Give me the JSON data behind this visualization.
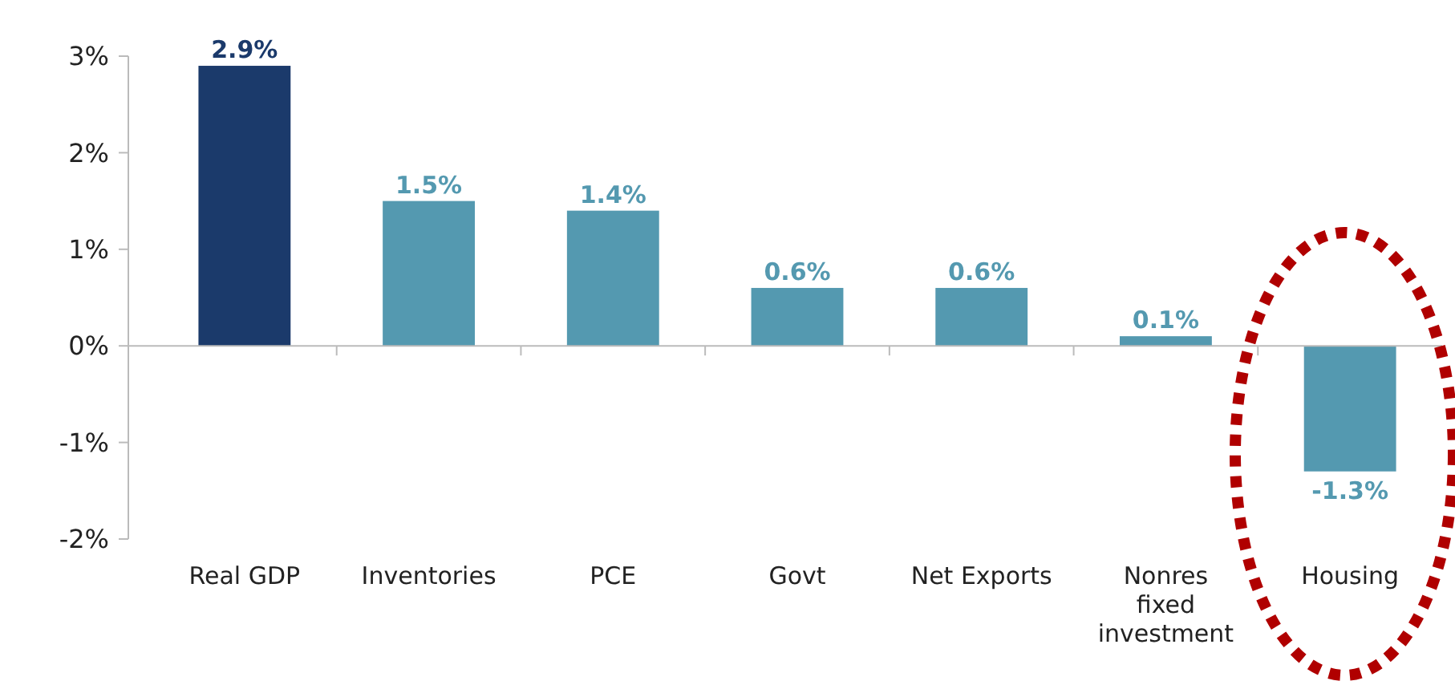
{
  "chart_data": {
    "type": "bar",
    "categories": [
      "Real GDP",
      "Inventories",
      "PCE",
      "Govt",
      "Net Exports",
      "Nonres\nfixed\ninvestment",
      "Housing"
    ],
    "values": [
      2.9,
      1.5,
      1.4,
      0.6,
      0.6,
      0.1,
      -1.3
    ],
    "colors": [
      "#1b3a6b",
      "#5499b0",
      "#5499b0",
      "#5499b0",
      "#5499b0",
      "#5499b0",
      "#5499b0"
    ],
    "value_labels": [
      "2.9%",
      "1.5%",
      "1.4%",
      "0.6%",
      "0.6%",
      "0.1%",
      "-1.3%"
    ],
    "ylim": [
      -2,
      3
    ],
    "yticks": [
      {
        "value": -2,
        "label": "-2%"
      },
      {
        "value": -1,
        "label": "-1%"
      },
      {
        "value": 0,
        "label": "0%"
      },
      {
        "value": 1,
        "label": "1%"
      },
      {
        "value": 2,
        "label": "2%"
      },
      {
        "value": 3,
        "label": "3%"
      }
    ],
    "stacked": false
  }
}
